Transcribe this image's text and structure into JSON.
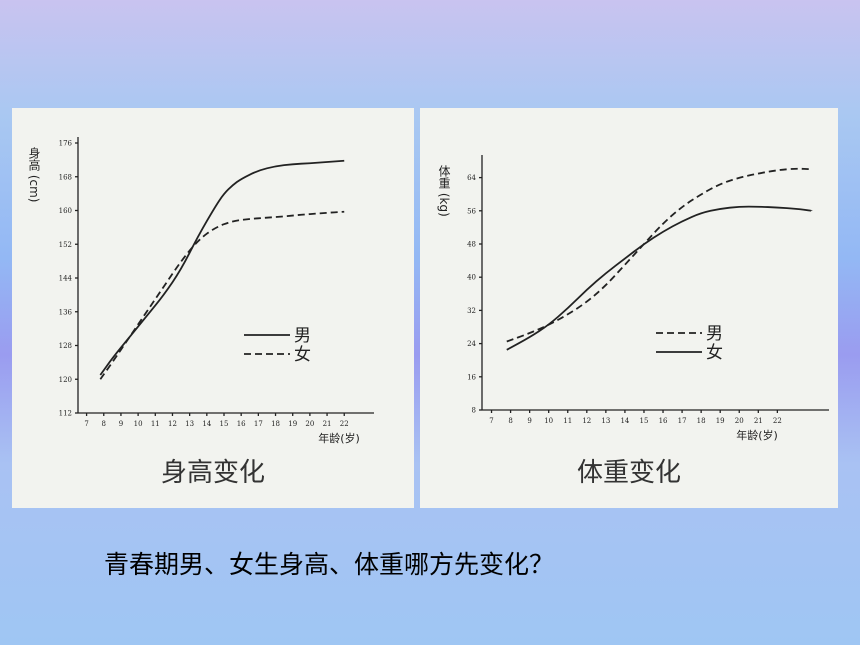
{
  "chart_data": [
    {
      "type": "line",
      "title": "身高变化",
      "ylabel": "身高 (cm)",
      "xlabel": "年龄(岁)",
      "x_ticks": [
        7,
        8,
        9,
        10,
        11,
        12,
        13,
        14,
        15,
        16,
        17,
        18,
        19,
        20,
        21,
        22
      ],
      "y_ticks": [
        112,
        120,
        128,
        136,
        144,
        152,
        160,
        168,
        176
      ],
      "xlim": [
        6.5,
        23.5
      ],
      "ylim": [
        112,
        176
      ],
      "grid": false,
      "legend_position": "center-right",
      "series": [
        {
          "name": "男",
          "style": "solid",
          "x": [
            7.8,
            8.5,
            9.5,
            10.5,
            11.5,
            12.5,
            13.5,
            14.5,
            15,
            15.5,
            16,
            17,
            18,
            19,
            20,
            21,
            22
          ],
          "y": [
            121,
            125,
            130,
            135,
            140,
            146,
            154,
            161,
            164,
            166,
            167.5,
            169.5,
            170.5,
            171,
            171.2,
            171.5,
            171.8
          ]
        },
        {
          "name": "女",
          "style": "dashed",
          "x": [
            7.8,
            8.5,
            9.5,
            10.5,
            11.5,
            12.5,
            13.5,
            14.5,
            15.5,
            16.5,
            17.5,
            18.5,
            19.5,
            20.5,
            21.5,
            22
          ],
          "y": [
            120,
            124,
            130,
            136,
            142,
            148,
            153,
            156,
            157.5,
            158,
            158.3,
            158.6,
            159,
            159.3,
            159.6,
            159.7
          ]
        }
      ]
    },
    {
      "type": "line",
      "title": "体重变化",
      "ylabel": "体重 (kg)",
      "xlabel": "年龄(岁)",
      "x_ticks": [
        7,
        8,
        9,
        10,
        11,
        12,
        13,
        14,
        15,
        16,
        17,
        18,
        19,
        20,
        21,
        22
      ],
      "y_ticks": [
        8,
        16,
        24,
        32,
        40,
        48,
        56,
        64
      ],
      "xlim": [
        6.5,
        24.5
      ],
      "ylim": [
        8,
        68
      ],
      "grid": false,
      "legend_position": "center-right",
      "series": [
        {
          "name": "男",
          "style": "dashed",
          "x": [
            7.8,
            9,
            10,
            11,
            12,
            13,
            14,
            15,
            16,
            17,
            18,
            19,
            20,
            21,
            22,
            23,
            23.8
          ],
          "y": [
            24.5,
            26.5,
            28.5,
            31,
            34,
            38,
            43,
            48,
            53,
            57,
            60,
            62.5,
            64,
            65,
            65.8,
            66.2,
            66
          ]
        },
        {
          "name": "女",
          "style": "solid",
          "x": [
            7.8,
            9,
            10,
            11,
            12,
            13,
            14,
            15,
            16,
            17,
            18,
            19,
            20,
            21,
            22,
            23,
            23.8
          ],
          "y": [
            22.5,
            25.5,
            28.5,
            32.5,
            37,
            41,
            44.5,
            48,
            51,
            53.5,
            55.5,
            56.5,
            57,
            57,
            56.8,
            56.5,
            56
          ]
        }
      ]
    }
  ],
  "question": "青春期男、女生身高、体重哪方先变化？"
}
